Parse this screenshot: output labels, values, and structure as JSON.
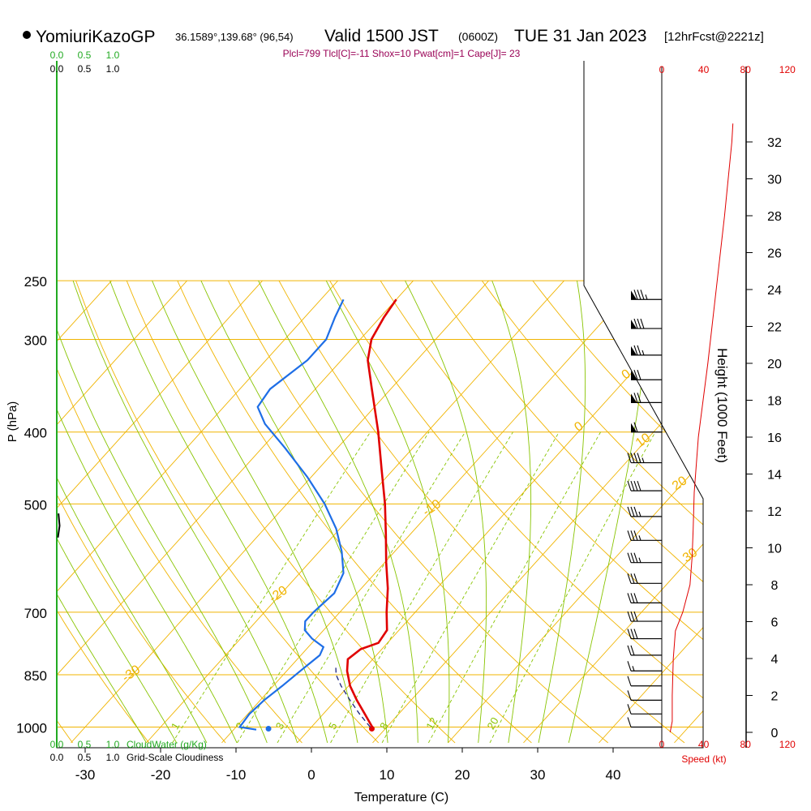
{
  "header": {
    "station": "YomiuriKazoGP",
    "location": "36.1589°,139.68° (96,54)",
    "valid": "Valid 1500 JST",
    "utc": "(0600Z)",
    "date": "TUE 31 Jan 2023",
    "forecast": "[12hrFcst@2221z]"
  },
  "indices": "Plcl=799 Tlcl[C]=-11 Shox=10 Pwat[cm]=1 Cape[J]= 23",
  "labels": {
    "y_axis": "P (hPa)",
    "x_axis": "Temperature (C)",
    "height_axis": "Height (1000 Feet)",
    "speed_axis": "Speed (kt)",
    "cloudwater": "CloudWater (g/Kg)",
    "cloudiness": "Grid-Scale Cloudiness"
  },
  "colors": {
    "isobar": "#f0b400",
    "isotherm": "#f0b400",
    "dry_adiabat": "#f0b400",
    "moist_adiabat": "#88c400",
    "mixing_ratio": "#88c400",
    "temperature": "#e00000",
    "dewpoint": "#1e6ee6",
    "parcel": "#1a237e",
    "wind_speed": "#e00000",
    "cloudwater": "#22aa22",
    "indices": "#990055"
  },
  "chart_data": {
    "type": "line",
    "title": "YomiuriKazoGP Valid 1500 JST (0600Z) TUE 31 Jan 2023",
    "xlabel": "Temperature (C)",
    "ylabel": "P (hPa)",
    "xlim": [
      -35,
      35
    ],
    "ylim": [
      1050,
      250
    ],
    "x_ticks": [
      -30,
      -20,
      -10,
      0,
      10,
      20,
      30,
      40
    ],
    "p_ticks": [
      250,
      300,
      400,
      500,
      700,
      850,
      1000
    ],
    "height_ticks": [
      0,
      2,
      4,
      6,
      8,
      10,
      12,
      14,
      16,
      18,
      20,
      22,
      24,
      26,
      28,
      30,
      32
    ],
    "speed_ticks_top": [
      0,
      40,
      80,
      120
    ],
    "speed_ticks_bottom": [
      0,
      40,
      80,
      120
    ],
    "cloud_ticks_top_green": [
      "0.0",
      "0.5",
      "1.0"
    ],
    "cloud_ticks_top_black": [
      "0.0",
      "0.5",
      "1.0"
    ],
    "cloud_ticks_bottom_green": [
      "0.0",
      "0.5",
      "1.0"
    ],
    "cloud_ticks_bottom_black": [
      "0.0",
      "0.5",
      "1.0"
    ],
    "dry_adiabat_labels": [
      {
        "text": "10",
        "t": 10,
        "p": 300
      },
      {
        "text": "0",
        "t": 0,
        "p": 400
      },
      {
        "text": "-10",
        "t": -10,
        "p": 520
      },
      {
        "text": "-20",
        "t": -20,
        "p": 680
      },
      {
        "text": "-30",
        "t": -30,
        "p": 870
      },
      {
        "text": "0",
        "t": 0,
        "p": 340
      },
      {
        "text": "10",
        "t": 10,
        "p": 420
      },
      {
        "text": "20",
        "t": 20,
        "p": 480
      },
      {
        "text": "30",
        "t": 30,
        "p": 600
      }
    ],
    "mixing_ratio_labels": [
      "1",
      "2",
      "3",
      "5",
      "8",
      "12",
      "20"
    ],
    "series": [
      {
        "name": "Temperature",
        "points": [
          {
            "p": 1002,
            "t": 8.2
          },
          {
            "p": 960,
            "t": 5.5
          },
          {
            "p": 920,
            "t": 2.8
          },
          {
            "p": 880,
            "t": 0.2
          },
          {
            "p": 840,
            "t": -2.0
          },
          {
            "p": 810,
            "t": -3.3
          },
          {
            "p": 785,
            "t": -2.8
          },
          {
            "p": 770,
            "t": -1.2
          },
          {
            "p": 740,
            "t": -1.6
          },
          {
            "p": 700,
            "t": -3.8
          },
          {
            "p": 650,
            "t": -6.5
          },
          {
            "p": 600,
            "t": -9.8
          },
          {
            "p": 550,
            "t": -13.2
          },
          {
            "p": 500,
            "t": -17.0
          },
          {
            "p": 450,
            "t": -21.5
          },
          {
            "p": 400,
            "t": -26.5
          },
          {
            "p": 350,
            "t": -32.5
          },
          {
            "p": 320,
            "t": -36.5
          },
          {
            "p": 300,
            "t": -38.5
          },
          {
            "p": 280,
            "t": -39.5
          },
          {
            "p": 265,
            "t": -40.0
          }
        ]
      },
      {
        "name": "Dewpoint",
        "points": [
          {
            "p": 1008,
            "t": -7.0
          },
          {
            "p": 1000,
            "t": -9.5
          },
          {
            "p": 960,
            "t": -9.8
          },
          {
            "p": 920,
            "t": -9.5
          },
          {
            "p": 880,
            "t": -8.8
          },
          {
            "p": 840,
            "t": -8.2
          },
          {
            "p": 800,
            "t": -7.5
          },
          {
            "p": 780,
            "t": -8.0
          },
          {
            "p": 760,
            "t": -10.5
          },
          {
            "p": 740,
            "t": -12.5
          },
          {
            "p": 720,
            "t": -13.5
          },
          {
            "p": 700,
            "t": -13.5
          },
          {
            "p": 660,
            "t": -13.0
          },
          {
            "p": 620,
            "t": -14.2
          },
          {
            "p": 580,
            "t": -17.0
          },
          {
            "p": 540,
            "t": -20.5
          },
          {
            "p": 500,
            "t": -25.0
          },
          {
            "p": 460,
            "t": -30.5
          },
          {
            "p": 420,
            "t": -37.0
          },
          {
            "p": 390,
            "t": -42.5
          },
          {
            "p": 370,
            "t": -45.5
          },
          {
            "p": 350,
            "t": -46.0
          },
          {
            "p": 320,
            "t": -44.5
          },
          {
            "p": 300,
            "t": -44.5
          },
          {
            "p": 280,
            "t": -46.0
          },
          {
            "p": 265,
            "t": -47.0
          }
        ]
      },
      {
        "name": "Parcel",
        "points": [
          {
            "p": 1000,
            "t": 7.8
          },
          {
            "p": 960,
            "t": 4.8
          },
          {
            "p": 920,
            "t": 1.9
          },
          {
            "p": 880,
            "t": -1.0
          },
          {
            "p": 850,
            "t": -3.0
          },
          {
            "p": 825,
            "t": -4.2
          }
        ]
      },
      {
        "name": "Wind speed",
        "points": [
          {
            "h": 0,
            "v": 8
          },
          {
            "h": 0.6,
            "v": 10
          },
          {
            "h": 2,
            "v": 10
          },
          {
            "h": 4,
            "v": 11
          },
          {
            "h": 5.5,
            "v": 13
          },
          {
            "h": 6.5,
            "v": 20
          },
          {
            "h": 8,
            "v": 27
          },
          {
            "h": 9.5,
            "v": 29
          },
          {
            "h": 11,
            "v": 30
          },
          {
            "h": 13,
            "v": 31
          },
          {
            "h": 16,
            "v": 35
          },
          {
            "h": 20,
            "v": 44
          },
          {
            "h": 24,
            "v": 52
          },
          {
            "h": 28,
            "v": 60
          },
          {
            "h": 32,
            "v": 67
          },
          {
            "h": 33,
            "v": 68
          }
        ]
      },
      {
        "name": "Cloud water",
        "points": [
          {
            "p": 555,
            "v": 0.02
          },
          {
            "p": 535,
            "v": 0.05
          },
          {
            "p": 515,
            "v": 0.03
          }
        ]
      }
    ],
    "surface_markers": [
      {
        "name": "surface-temperature",
        "t": 8.2,
        "p": 1005
      },
      {
        "name": "surface-dewpoint",
        "t": -5.5,
        "p": 1005
      }
    ],
    "wind_barbs": [
      {
        "p": 265,
        "speed": 85
      },
      {
        "p": 290,
        "speed": 80
      },
      {
        "p": 315,
        "speed": 75
      },
      {
        "p": 340,
        "speed": 70
      },
      {
        "p": 365,
        "speed": 70
      },
      {
        "p": 400,
        "speed": 60
      },
      {
        "p": 440,
        "speed": 45
      },
      {
        "p": 480,
        "speed": 40
      },
      {
        "p": 520,
        "speed": 35
      },
      {
        "p": 560,
        "speed": 35
      },
      {
        "p": 600,
        "speed": 35
      },
      {
        "p": 640,
        "speed": 30
      },
      {
        "p": 680,
        "speed": 30
      },
      {
        "p": 720,
        "speed": 30
      },
      {
        "p": 760,
        "speed": 30
      },
      {
        "p": 800,
        "speed": 20
      },
      {
        "p": 840,
        "speed": 15
      },
      {
        "p": 880,
        "speed": 10
      },
      {
        "p": 920,
        "speed": 10
      },
      {
        "p": 960,
        "speed": 10
      },
      {
        "p": 1000,
        "speed": 8
      }
    ]
  }
}
